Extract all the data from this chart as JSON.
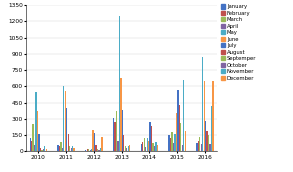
{
  "years": [
    "2010",
    "2011",
    "2012",
    "2013",
    "2014",
    "2015",
    "2016"
  ],
  "months": [
    "January",
    "February",
    "March",
    "April",
    "May",
    "June",
    "July",
    "August",
    "Septemper",
    "October",
    "November",
    "December"
  ],
  "month_colors": [
    "#4472C4",
    "#C0504D",
    "#9BBB59",
    "#8064A2",
    "#4BACC6",
    "#F79646",
    "#4472C4",
    "#C0504D",
    "#9BBB59",
    "#8064A2",
    "#4BACC6",
    "#F79646"
  ],
  "data": {
    "2010": [
      120,
      100,
      250,
      60,
      550,
      370,
      160,
      35,
      10,
      20,
      50,
      20
    ],
    "2011": [
      60,
      45,
      90,
      30,
      600,
      560,
      400,
      160,
      50,
      30,
      50,
      30
    ],
    "2012": [
      15,
      20,
      25,
      15,
      25,
      195,
      165,
      60,
      20,
      15,
      30,
      130
    ],
    "2013": [
      310,
      270,
      370,
      100,
      1250,
      680,
      380,
      150,
      50,
      35,
      50,
      60
    ],
    "2014": [
      70,
      90,
      120,
      40,
      120,
      95,
      270,
      230,
      80,
      45,
      90,
      60
    ],
    "2015": [
      150,
      120,
      175,
      80,
      160,
      350,
      570,
      430,
      265,
      60,
      660,
      190
    ],
    "2016": [
      75,
      100,
      135,
      65,
      870,
      650,
      280,
      190,
      150,
      65,
      420,
      650
    ]
  },
  "ylim": [
    0,
    1350
  ],
  "yticks": [
    0,
    150,
    300,
    450,
    600,
    750,
    900,
    1050,
    1200,
    1350
  ],
  "figsize": [
    2.93,
    1.72
  ],
  "dpi": 100,
  "background": "#FFFFFF",
  "grid_color": "#D9D9D9"
}
